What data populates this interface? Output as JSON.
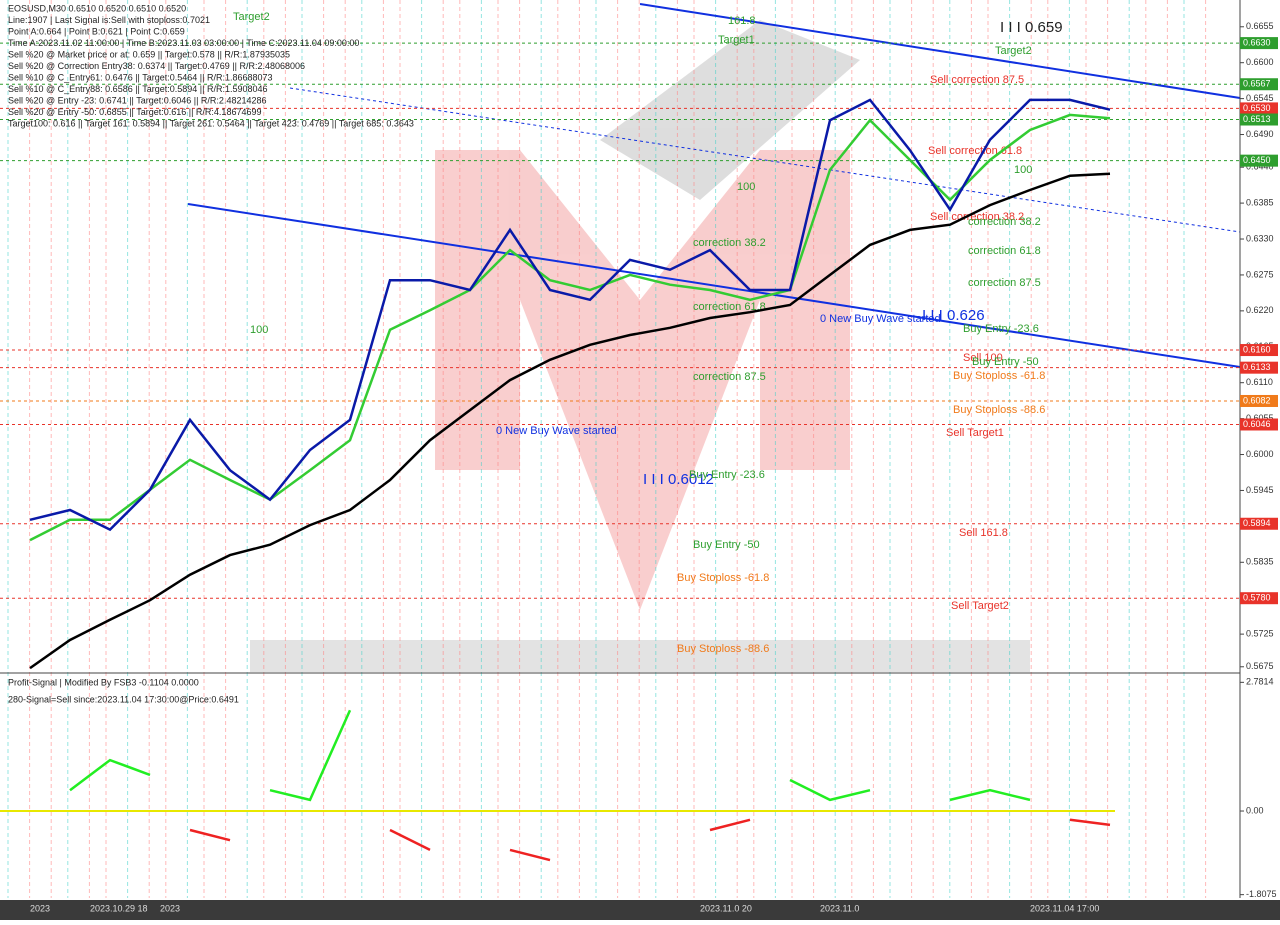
{
  "chart_data": {
    "type": "line",
    "info": [
      "EOSUSD,M30  0.6510 0.6520 0.6510 0.6520",
      "Line:1907 | Last Signal is:Sell with stoploss:0.7021",
      "Point A:0.664 | Point B:0.621 | Point C:0.659",
      "Time A:2023.11.02 11:00:00 | Time B:2023.11.03 03:00:00 | Time C:2023.11.04 09:00:00",
      "Sell %20 @ Market price or at: 0.659 || Target:0.578 || R/R:1.87935035",
      "Sell %20 @ Correction Entry38: 0.6374 || Target:0.4769 || R/R:2.48068006",
      "Sell %10 @ C_Entry61: 0.6476 || Target:0.5464 || R/R:1.86688073",
      "Sell %10 @ C_Entry88: 0.6586 || Target:0.5894 || R/R:1.5908046",
      "Sell %20 @ Entry -23: 0.6741 || Target:0.6046 || R/R:2.48214286",
      "Sell %20 @ Entry -50: 0.6855 || Target:0.616 || R/R:4.18674699",
      "Target100: 0.616 || Target 161: 0.5894 || Target 261: 0.5464 || Target 423: 0.4769 || Target 685: 0.3643"
    ],
    "annotations": [
      "Target2",
      "Target1",
      "Target2",
      "I I I 0.659",
      "161.8",
      "Sell correction 87.5",
      "Sell correction 61.8",
      "Sell correction 38.2",
      "correction 38.2",
      "correction 61.8",
      "correction 87.5",
      "100",
      "100",
      "100",
      "correction 38.2",
      "correction 61.8",
      "correction 87.5",
      "0 New Buy Wave started",
      "I I I 0.626",
      "Buy Entry -23.6",
      "Sell 100",
      "Buy Entry -50",
      "Buy Stoploss -61.8",
      "Buy Stoploss -88.6",
      "Sell Target1",
      "0 New Buy Wave started",
      "I I I 0.6012",
      "Buy Entry -23.6",
      "Buy Entry -50",
      "Buy Stoploss -61.8",
      "Buy Stoploss -88.6",
      "Sell 161.8",
      "Sell Target2",
      "Profit-Signal | Modified By FSB3 -0.1104 0.0000",
      "280-Signal=Sell since:2023.11.04 17:30:00@Price:0.6491"
    ],
    "x": [
      0,
      1,
      2,
      3,
      4,
      5,
      6,
      7,
      8,
      9,
      10,
      11,
      12,
      13,
      14,
      15,
      16,
      17,
      18,
      19,
      20,
      21,
      22,
      23,
      24,
      25,
      26,
      27
    ],
    "xlim": [
      -0.75,
      30.25
    ],
    "x_labels": [
      "2023",
      "2023.10.29 18",
      "2023",
      "2023.11.0 20",
      "2023.11.0",
      "2023.11.04 17:00"
    ],
    "ylim": [
      0.5667,
      0.6696
    ],
    "yticks": [
      {
        "value": 0.6655,
        "label": "0.6655"
      },
      {
        "value": 0.66,
        "label": "0.6600"
      },
      {
        "value": 0.6545,
        "label": "0.6545"
      },
      {
        "value": 0.649,
        "label": "0.6490"
      },
      {
        "value": 0.644,
        "label": "0.6440"
      },
      {
        "value": 0.6385,
        "label": "0.6385"
      },
      {
        "value": 0.633,
        "label": "0.6330"
      },
      {
        "value": 0.6275,
        "label": "0.6275"
      },
      {
        "value": 0.622,
        "label": "0.6220"
      },
      {
        "value": 0.6165,
        "label": "0.6165"
      },
      {
        "value": 0.611,
        "label": "0.6110"
      },
      {
        "value": 0.6055,
        "label": "0.6055"
      },
      {
        "value": 0.6,
        "label": "0.6000"
      },
      {
        "value": 0.5945,
        "label": "0.5945"
      },
      {
        "value": 0.589,
        "label": "0.5890"
      },
      {
        "value": 0.5835,
        "label": "0.5835"
      },
      {
        "value": 0.578,
        "label": "0.5780"
      },
      {
        "value": 0.5725,
        "label": "0.5725"
      },
      {
        "value": 0.5675,
        "label": "0.5675"
      }
    ],
    "levels": [
      {
        "value": 0.663,
        "label": "0.6630",
        "color": "#2e9e2e"
      },
      {
        "value": 0.6567,
        "label": "0.6567",
        "color": "#2e9e2e"
      },
      {
        "value": 0.653,
        "label": "0.6530",
        "color": "#e8332a"
      },
      {
        "value": 0.6513,
        "label": "0.6513",
        "color": "#2e9e2e"
      },
      {
        "value": 0.645,
        "label": "0.6450",
        "color": "#2e9e2e"
      },
      {
        "value": 0.616,
        "label": "0.6160",
        "color": "#e8332a"
      },
      {
        "value": 0.6133,
        "label": "0.6133",
        "color": "#e8332a"
      },
      {
        "value": 0.6082,
        "label": "0.6082",
        "color": "#f07a1a"
      },
      {
        "value": 0.6046,
        "label": "0.6046",
        "color": "#e8332a"
      },
      {
        "value": 0.5894,
        "label": "0.5894",
        "color": "#e8332a"
      },
      {
        "value": 0.578,
        "label": "0.5780",
        "color": "#e8332a"
      }
    ],
    "series": [
      {
        "color": "#000000",
        "values": [
          0.5673,
          0.5716,
          0.5747,
          0.5777,
          0.5816,
          0.5846,
          0.5862,
          0.5892,
          0.5915,
          0.5961,
          0.6022,
          0.6068,
          0.6114,
          0.6145,
          0.6168,
          0.6183,
          0.6194,
          0.6209,
          0.6218,
          0.6229,
          0.6275,
          0.6321,
          0.6344,
          0.6352,
          0.6382,
          0.6405,
          0.6427,
          0.643
        ]
      },
      {
        "color": "#33cc33",
        "values": [
          0.5869,
          0.59,
          0.59,
          0.5946,
          0.5992,
          0.5961,
          0.5931,
          0.5976,
          0.6022,
          0.6191,
          0.6221,
          0.6252,
          0.6313,
          0.6267,
          0.6252,
          0.6275,
          0.626,
          0.6252,
          0.6237,
          0.6252,
          0.6436,
          0.6512,
          0.6451,
          0.639,
          0.6451,
          0.6497,
          0.652,
          0.6515
        ]
      },
      {
        "color": "#0a1aa8",
        "values": [
          0.59,
          0.5915,
          0.5885,
          0.5946,
          0.6053,
          0.5976,
          0.5931,
          0.6007,
          0.6053,
          0.6267,
          0.6267,
          0.6252,
          0.6344,
          0.6252,
          0.6237,
          0.6298,
          0.6283,
          0.6313,
          0.6252,
          0.6252,
          0.6512,
          0.6543,
          0.6466,
          0.6375,
          0.6482,
          0.6543,
          0.6543,
          0.6528
        ]
      }
    ],
    "indicator": {
      "ylim": [
        -1.88,
        2.94
      ],
      "yticks": [
        {
          "value": 2.7814,
          "label": "2.7814"
        },
        {
          "value": 0,
          "label": "0.00"
        },
        {
          "value": -1.8075,
          "label": "-1.8075"
        }
      ],
      "series": [
        {
          "color": "#22ee22",
          "values": [
            null,
            0.45,
            1.1,
            0.78,
            null,
            null,
            0.45,
            0.24,
            2.18,
            null,
            null,
            1.1,
            null,
            null,
            0.67,
            null,
            0.02,
            null,
            null,
            0.67,
            0.24,
            0.45,
            null,
            0.24,
            0.45,
            0.24,
            null,
            null
          ]
        },
        {
          "color": "#ee2222",
          "values": [
            -0.19,
            null,
            null,
            null,
            -0.41,
            -0.63,
            null,
            null,
            null,
            -0.41,
            -0.84,
            null,
            -0.84,
            -1.06,
            null,
            -0.19,
            null,
            -0.41,
            -0.19,
            null,
            null,
            null,
            -0.19,
            null,
            null,
            null,
            -0.19,
            -0.3
          ]
        }
      ]
    }
  }
}
